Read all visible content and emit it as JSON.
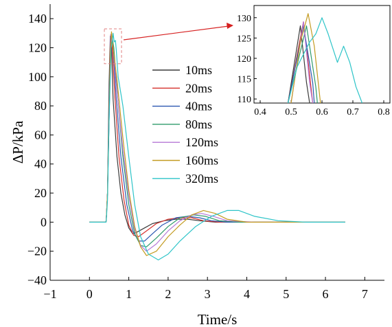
{
  "chart_data": [
    {
      "type": "line",
      "xlabel": "Time/s",
      "ylabel": "ΔP/kPa",
      "xlim": [
        -1,
        7.5
      ],
      "ylim": [
        -40,
        150
      ],
      "xticks": [
        -1,
        0,
        1,
        2,
        3,
        4,
        5,
        6,
        7
      ],
      "yticks": [
        -40,
        -20,
        0,
        20,
        40,
        60,
        80,
        100,
        120,
        140
      ],
      "legend_position": "center",
      "series": [
        {
          "name": "10ms",
          "color": "#3a3a3a",
          "points": [
            [
              0,
              0
            ],
            [
              0.3,
              0
            ],
            [
              0.42,
              0
            ],
            [
              0.43,
              3
            ],
            [
              0.46,
              20
            ],
            [
              0.5,
              95
            ],
            [
              0.53,
              128
            ],
            [
              0.56,
              120
            ],
            [
              0.6,
              85
            ],
            [
              0.7,
              45
            ],
            [
              0.8,
              20
            ],
            [
              0.9,
              5
            ],
            [
              1.0,
              -4
            ],
            [
              1.1,
              -8
            ],
            [
              1.2,
              -7
            ],
            [
              1.4,
              -4
            ],
            [
              1.6,
              -1
            ],
            [
              1.9,
              1
            ],
            [
              2.2,
              2
            ],
            [
              2.5,
              2
            ],
            [
              2.8,
              1
            ],
            [
              3.2,
              0
            ],
            [
              3.8,
              0
            ],
            [
              4.5,
              0
            ],
            [
              5.5,
              0
            ],
            [
              6.5,
              0
            ]
          ]
        },
        {
          "name": "20ms",
          "color": "#d6322e",
          "points": [
            [
              0,
              0
            ],
            [
              0.3,
              0
            ],
            [
              0.42,
              0
            ],
            [
              0.43,
              3
            ],
            [
              0.46,
              20
            ],
            [
              0.51,
              95
            ],
            [
              0.54,
              129
            ],
            [
              0.58,
              120
            ],
            [
              0.65,
              85
            ],
            [
              0.75,
              45
            ],
            [
              0.88,
              15
            ],
            [
              1.0,
              -2
            ],
            [
              1.12,
              -9
            ],
            [
              1.25,
              -10
            ],
            [
              1.45,
              -6
            ],
            [
              1.7,
              -1
            ],
            [
              2.0,
              2
            ],
            [
              2.3,
              3
            ],
            [
              2.6,
              3
            ],
            [
              2.9,
              1
            ],
            [
              3.3,
              0
            ],
            [
              4,
              0
            ],
            [
              5,
              0
            ],
            [
              6.5,
              0
            ]
          ]
        },
        {
          "name": "40ms",
          "color": "#2a56b0",
          "points": [
            [
              0,
              0
            ],
            [
              0.3,
              0
            ],
            [
              0.42,
              0
            ],
            [
              0.43,
              3
            ],
            [
              0.46,
              20
            ],
            [
              0.51,
              95
            ],
            [
              0.55,
              129
            ],
            [
              0.6,
              120
            ],
            [
              0.68,
              85
            ],
            [
              0.8,
              45
            ],
            [
              0.95,
              12
            ],
            [
              1.1,
              -6
            ],
            [
              1.25,
              -13
            ],
            [
              1.4,
              -13
            ],
            [
              1.6,
              -8
            ],
            [
              1.85,
              -2
            ],
            [
              2.2,
              3
            ],
            [
              2.5,
              4
            ],
            [
              2.8,
              3
            ],
            [
              3.1,
              1
            ],
            [
              3.5,
              0
            ],
            [
              4.2,
              0
            ],
            [
              5,
              0
            ],
            [
              6.5,
              0
            ]
          ]
        },
        {
          "name": "80ms",
          "color": "#2e9a6a",
          "points": [
            [
              0,
              0
            ],
            [
              0.3,
              0
            ],
            [
              0.42,
              0
            ],
            [
              0.43,
              3
            ],
            [
              0.46,
              20
            ],
            [
              0.52,
              95
            ],
            [
              0.56,
              130
            ],
            [
              0.62,
              120
            ],
            [
              0.72,
              85
            ],
            [
              0.85,
              45
            ],
            [
              1.0,
              12
            ],
            [
              1.15,
              -8
            ],
            [
              1.3,
              -16
            ],
            [
              1.45,
              -17
            ],
            [
              1.7,
              -11
            ],
            [
              2.0,
              -3
            ],
            [
              2.3,
              3
            ],
            [
              2.65,
              5
            ],
            [
              2.95,
              4
            ],
            [
              3.3,
              1
            ],
            [
              3.8,
              0
            ],
            [
              4.5,
              0
            ],
            [
              5.5,
              0
            ],
            [
              6.5,
              0
            ]
          ]
        },
        {
          "name": "120ms",
          "color": "#b577d6",
          "points": [
            [
              0,
              0
            ],
            [
              0.3,
              0
            ],
            [
              0.42,
              0
            ],
            [
              0.43,
              3
            ],
            [
              0.46,
              20
            ],
            [
              0.52,
              95
            ],
            [
              0.54,
              129
            ],
            [
              0.6,
              120
            ],
            [
              0.7,
              90
            ],
            [
              0.85,
              50
            ],
            [
              1.0,
              18
            ],
            [
              1.15,
              -5
            ],
            [
              1.3,
              -16
            ],
            [
              1.45,
              -20
            ],
            [
              1.7,
              -15
            ],
            [
              2.0,
              -6
            ],
            [
              2.3,
              1
            ],
            [
              2.6,
              5
            ],
            [
              2.85,
              6
            ],
            [
              3.15,
              4
            ],
            [
              3.5,
              1
            ],
            [
              4.2,
              0
            ],
            [
              5,
              0
            ],
            [
              6.5,
              0
            ]
          ]
        },
        {
          "name": "160ms",
          "color": "#c39a20",
          "points": [
            [
              0,
              0
            ],
            [
              0.3,
              0
            ],
            [
              0.42,
              0
            ],
            [
              0.43,
              3
            ],
            [
              0.46,
              20
            ],
            [
              0.53,
              115
            ],
            [
              0.56,
              131
            ],
            [
              0.6,
              120
            ],
            [
              0.7,
              98
            ],
            [
              0.85,
              58
            ],
            [
              1.0,
              22
            ],
            [
              1.15,
              -3
            ],
            [
              1.3,
              -17
            ],
            [
              1.45,
              -23
            ],
            [
              1.7,
              -20
            ],
            [
              2.0,
              -10
            ],
            [
              2.3,
              -2
            ],
            [
              2.6,
              5
            ],
            [
              2.9,
              8
            ],
            [
              3.2,
              6
            ],
            [
              3.5,
              2
            ],
            [
              4.0,
              0
            ],
            [
              5,
              0
            ],
            [
              6.5,
              0
            ]
          ]
        },
        {
          "name": "320ms",
          "color": "#2dc4c8",
          "points": [
            [
              0,
              0
            ],
            [
              0.3,
              0
            ],
            [
              0.42,
              0
            ],
            [
              0.43,
              2
            ],
            [
              0.46,
              15
            ],
            [
              0.5,
              70
            ],
            [
              0.55,
              120
            ],
            [
              0.58,
              124
            ],
            [
              0.6,
              130
            ],
            [
              0.63,
              124
            ],
            [
              0.66,
              125
            ],
            [
              0.68,
              119
            ],
            [
              0.73,
              100
            ],
            [
              0.85,
              80
            ],
            [
              1.0,
              45
            ],
            [
              1.15,
              12
            ],
            [
              1.3,
              -10
            ],
            [
              1.5,
              -22
            ],
            [
              1.75,
              -26
            ],
            [
              2.0,
              -22
            ],
            [
              2.3,
              -13
            ],
            [
              2.7,
              -3
            ],
            [
              3.1,
              4
            ],
            [
              3.5,
              8
            ],
            [
              3.8,
              8
            ],
            [
              4.2,
              4
            ],
            [
              4.8,
              1
            ],
            [
              5.5,
              0
            ],
            [
              6.5,
              0
            ]
          ]
        }
      ]
    },
    {
      "type": "line",
      "xlim": [
        0.38,
        0.82
      ],
      "ylim": [
        109,
        133
      ],
      "xticks": [
        0.4,
        0.5,
        0.6,
        0.7,
        0.8
      ],
      "yticks": [
        110,
        115,
        120,
        125,
        130
      ],
      "series": [
        {
          "color": "#3a3a3a",
          "points": [
            [
              0.49,
              109
            ],
            [
              0.53,
              128
            ],
            [
              0.55,
              114
            ],
            [
              0.56,
              109
            ]
          ]
        },
        {
          "color": "#d6322e",
          "points": [
            [
              0.49,
              109
            ],
            [
              0.54,
              129
            ],
            [
              0.56,
              116
            ],
            [
              0.57,
              109
            ]
          ]
        },
        {
          "color": "#2a56b0",
          "points": [
            [
              0.49,
              109
            ],
            [
              0.54,
              128
            ],
            [
              0.57,
              114
            ],
            [
              0.575,
              109
            ]
          ]
        },
        {
          "color": "#2e9a6a",
          "points": [
            [
              0.49,
              109
            ],
            [
              0.55,
              128
            ],
            [
              0.58,
              113
            ],
            [
              0.585,
              109
            ]
          ]
        },
        {
          "color": "#b577d6",
          "points": [
            [
              0.5,
              109
            ],
            [
              0.54,
              129
            ],
            [
              0.56,
              114
            ],
            [
              0.57,
              109
            ]
          ]
        },
        {
          "color": "#c39a20",
          "points": [
            [
              0.5,
              109
            ],
            [
              0.53,
              124
            ],
            [
              0.555,
              131
            ],
            [
              0.575,
              123
            ],
            [
              0.595,
              109
            ]
          ]
        },
        {
          "color": "#2dc4c8",
          "points": [
            [
              0.49,
              109
            ],
            [
              0.52,
              118
            ],
            [
              0.56,
              124
            ],
            [
              0.58,
              126
            ],
            [
              0.6,
              130
            ],
            [
              0.62,
              126
            ],
            [
              0.65,
              119
            ],
            [
              0.67,
              123
            ],
            [
              0.69,
              119
            ],
            [
              0.71,
              113
            ],
            [
              0.73,
              109
            ]
          ]
        }
      ]
    }
  ]
}
